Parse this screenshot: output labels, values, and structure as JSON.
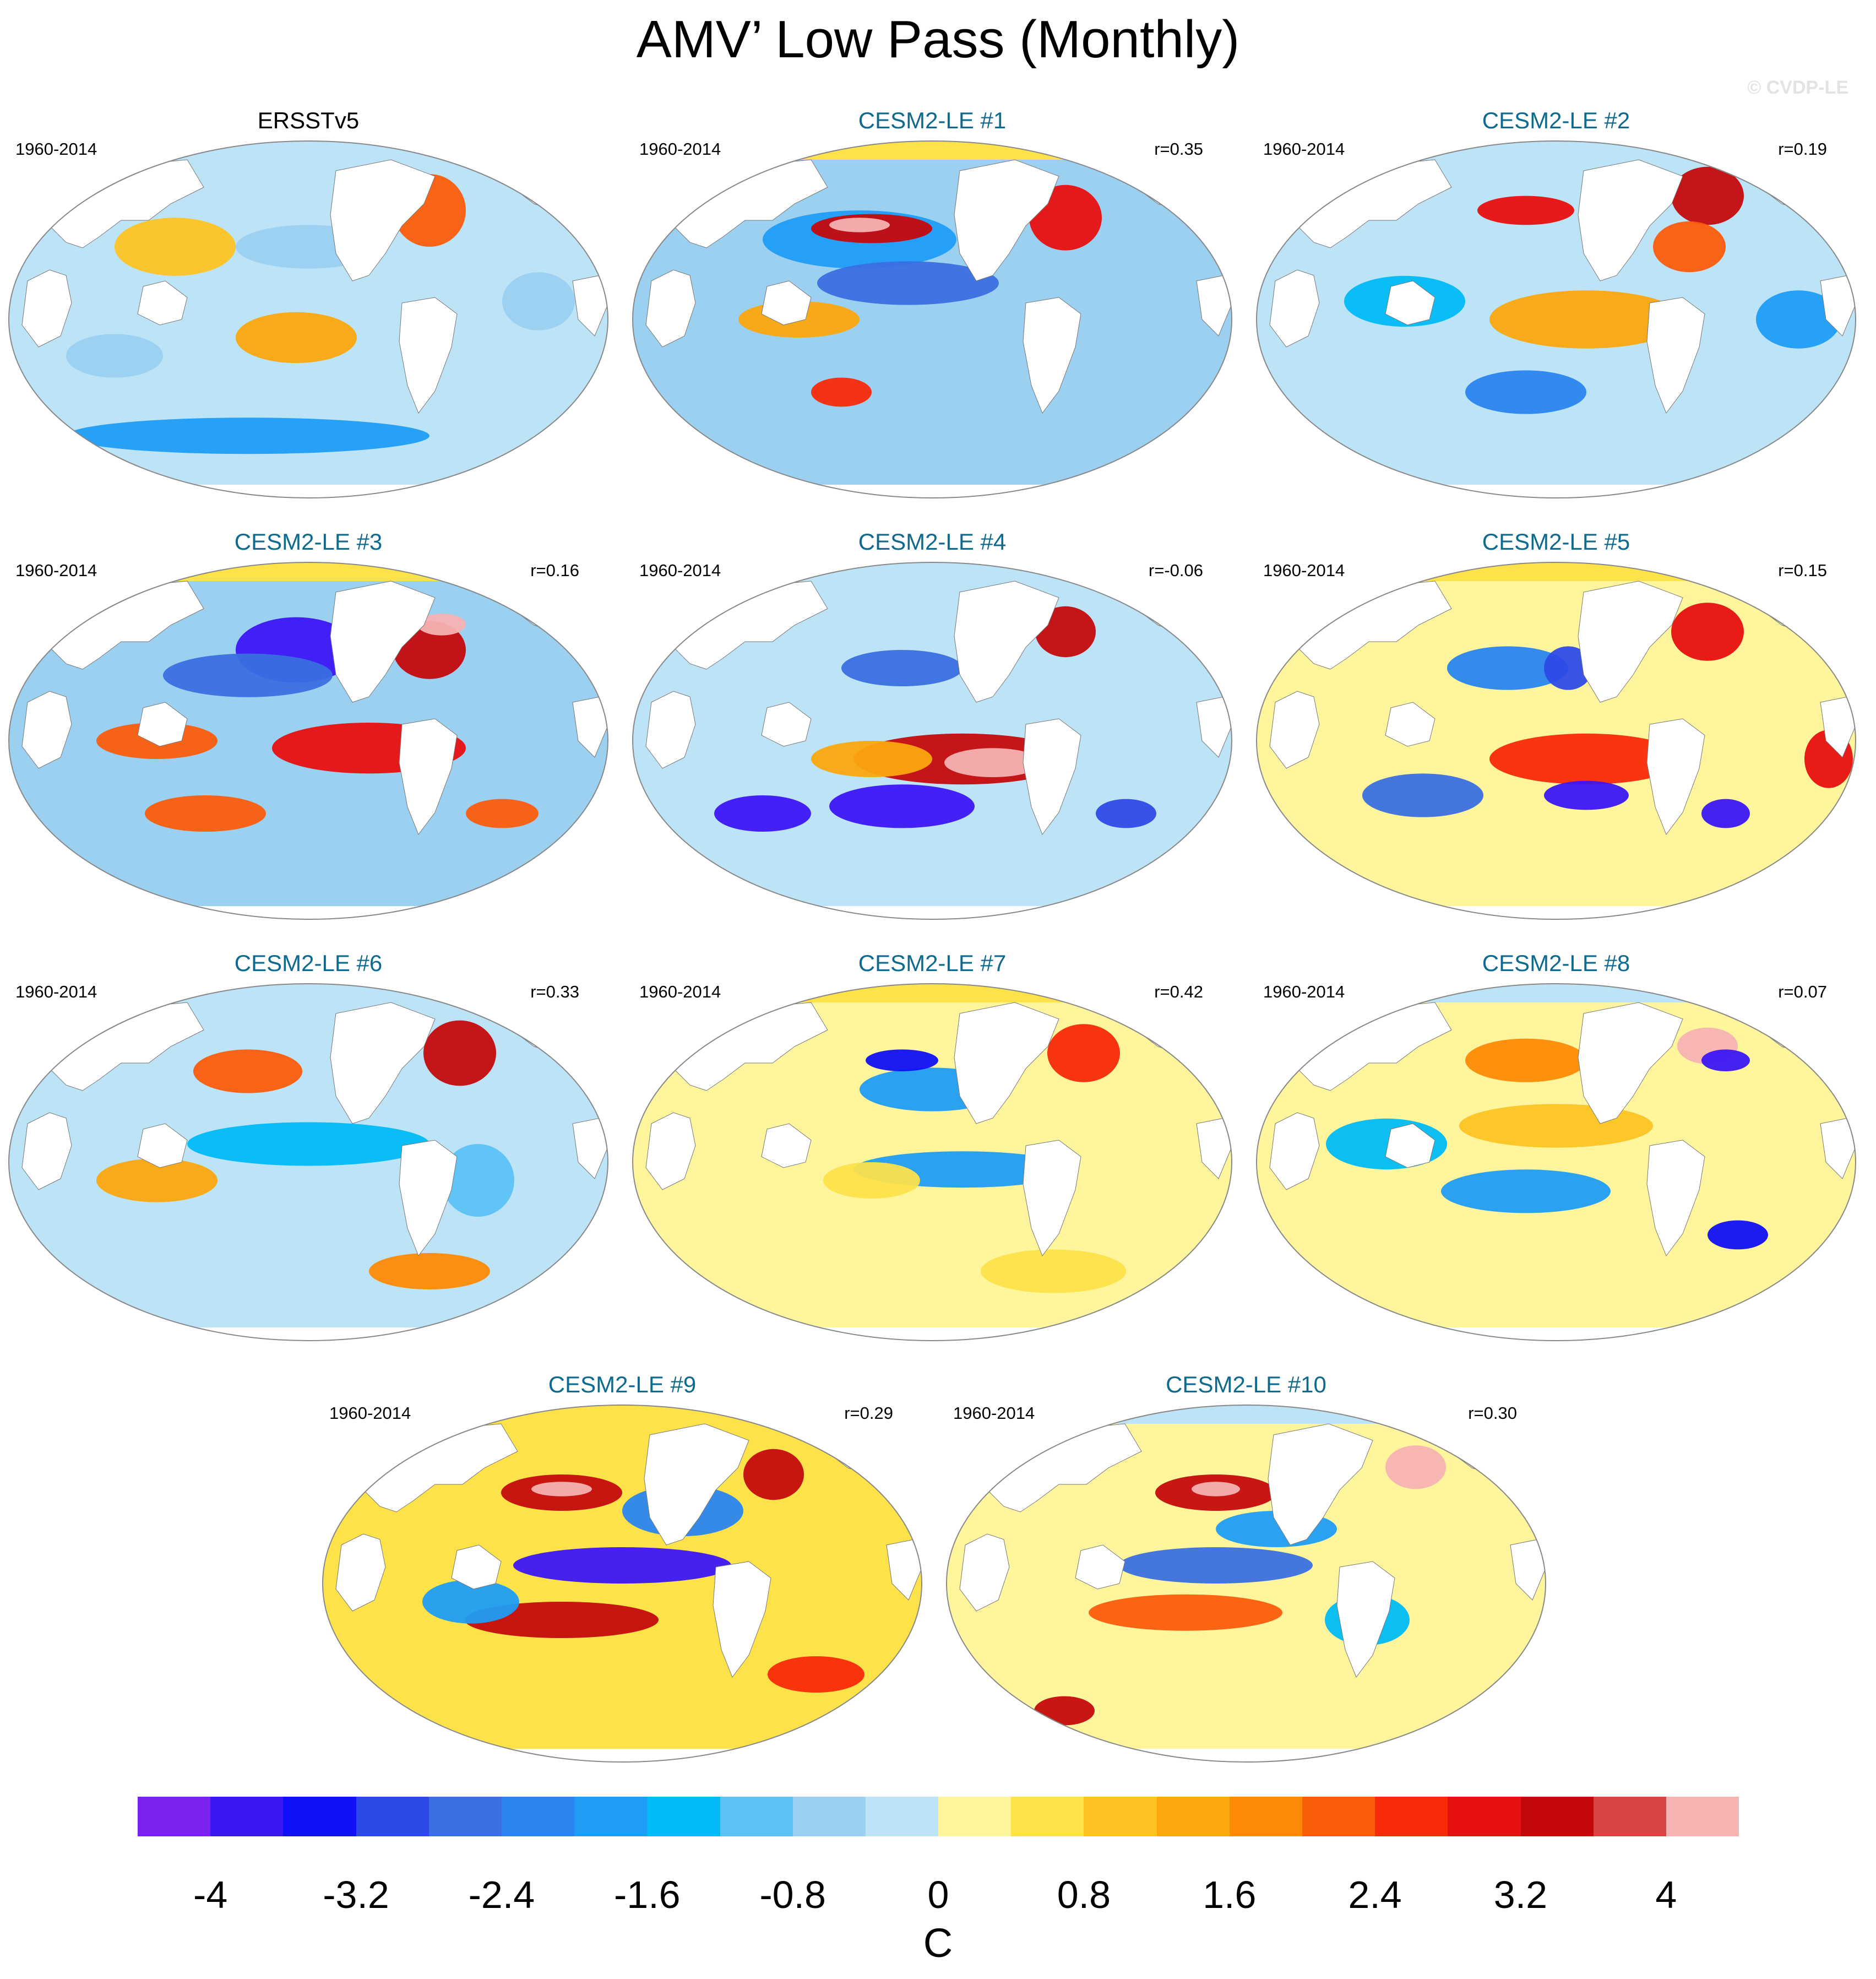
{
  "title": "AMV’ Low Pass (Monthly)",
  "credit": "© CVDP-LE",
  "panels": [
    {
      "title": "ERSSTv5",
      "period": "1960-2014",
      "corr": "",
      "observed": true
    },
    {
      "title": "CESM2-LE #1",
      "period": "1960-2014",
      "corr": "r=0.35",
      "observed": false
    },
    {
      "title": "CESM2-LE #2",
      "period": "1960-2014",
      "corr": "r=0.19",
      "observed": false
    },
    {
      "title": "CESM2-LE #3",
      "period": "1960-2014",
      "corr": "r=0.16",
      "observed": false
    },
    {
      "title": "CESM2-LE #4",
      "period": "1960-2014",
      "corr": "r=-0.06",
      "observed": false
    },
    {
      "title": "CESM2-LE #5",
      "period": "1960-2014",
      "corr": "r=0.15",
      "observed": false
    },
    {
      "title": "CESM2-LE #6",
      "period": "1960-2014",
      "corr": "r=0.33",
      "observed": false
    },
    {
      "title": "CESM2-LE #7",
      "period": "1960-2014",
      "corr": "r=0.42",
      "observed": false
    },
    {
      "title": "CESM2-LE #8",
      "period": "1960-2014",
      "corr": "r=0.07",
      "observed": false
    },
    {
      "title": "CESM2-LE #9",
      "period": "1960-2014",
      "corr": "r=0.29",
      "observed": false
    },
    {
      "title": "CESM2-LE #10",
      "period": "1960-2014",
      "corr": "r=0.30",
      "observed": false
    }
  ],
  "colorbar": {
    "unit": "C",
    "ticks": [
      "-4",
      "-3.2",
      "-2.4",
      "-1.6",
      "-0.8",
      "0",
      "0.8",
      "1.6",
      "2.4",
      "3.2",
      "4"
    ],
    "colors": [
      "#7b22f0",
      "#3c16f5",
      "#1010f7",
      "#2e4ae6",
      "#3a6fe0",
      "#2a85f0",
      "#1f9df5",
      "#00bbf7",
      "#5cc2f5",
      "#9bd0f0",
      "#bde3f7",
      "#fff59d",
      "#fde24a",
      "#fdc323",
      "#fca70e",
      "#fd8a05",
      "#fb5c0b",
      "#f92a0a",
      "#e80f0f",
      "#c4090c",
      "#d94445",
      "#f7b2b2"
    ]
  }
}
